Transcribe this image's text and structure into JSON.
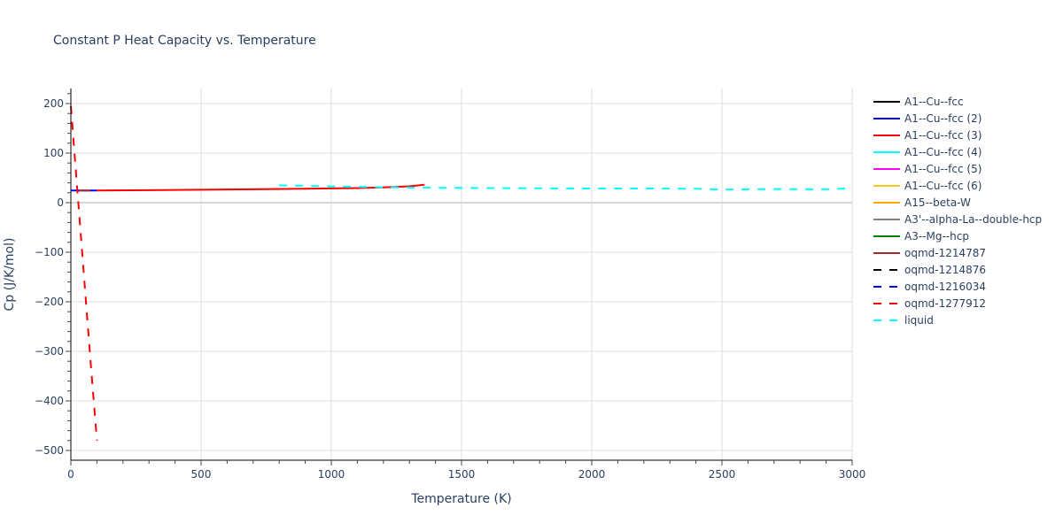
{
  "chart": {
    "title": "Constant P Heat Capacity vs. Temperature",
    "xlabel": "Temperature (K)",
    "ylabel": "Cp (J/K/mol)"
  },
  "chart_data": {
    "type": "line",
    "title": "Constant P Heat Capacity vs. Temperature",
    "xlabel": "Temperature (K)",
    "ylabel": "Cp (J/K/mol)",
    "xlim": [
      0,
      3000
    ],
    "ylim": [
      -520,
      230
    ],
    "xticks": [
      0,
      500,
      1000,
      1500,
      2000,
      2500,
      3000
    ],
    "yticks": [
      200,
      100,
      0,
      -100,
      -200,
      -300,
      -400,
      -500
    ],
    "grid": true,
    "legend_position": "right",
    "series": [
      {
        "name": "A1--Cu--fcc",
        "color": "#000000",
        "dash": "solid",
        "x": [],
        "y": []
      },
      {
        "name": "A1--Cu--fcc (2)",
        "color": "#0000ff",
        "dash": "solid",
        "x": [
          0,
          100
        ],
        "y": [
          24.5,
          24.5
        ]
      },
      {
        "name": "A1--Cu--fcc (3)",
        "color": "#ff0000",
        "dash": "solid",
        "x": [
          100,
          300,
          500,
          700,
          900,
          1100,
          1200,
          1300,
          1358
        ],
        "y": [
          24.5,
          25.2,
          26.0,
          27.0,
          28.0,
          29.5,
          30.8,
          33.0,
          36.0
        ]
      },
      {
        "name": "A1--Cu--fcc (4)",
        "color": "#00ffff",
        "dash": "solid",
        "x": [],
        "y": []
      },
      {
        "name": "A1--Cu--fcc (5)",
        "color": "#ff00ff",
        "dash": "solid",
        "x": [],
        "y": []
      },
      {
        "name": "A1--Cu--fcc (6)",
        "color": "#f5c518",
        "dash": "solid",
        "x": [],
        "y": []
      },
      {
        "name": "A15--beta-W",
        "color": "#ffa500",
        "dash": "solid",
        "x": [],
        "y": []
      },
      {
        "name": "A3'--alpha-La--double-hcp",
        "color": "#808080",
        "dash": "solid",
        "x": [],
        "y": []
      },
      {
        "name": "A3--Mg--hcp",
        "color": "#008000",
        "dash": "solid",
        "x": [],
        "y": []
      },
      {
        "name": "oqmd-1214787",
        "color": "#a52a2a",
        "dash": "solid",
        "x": [
          30,
          75
        ],
        "y": [
          24.5,
          24.5
        ]
      },
      {
        "name": "oqmd-1214876",
        "color": "#000000",
        "dash": "dash",
        "x": [],
        "y": []
      },
      {
        "name": "oqmd-1216034",
        "color": "#0000ff",
        "dash": "dash",
        "x": [],
        "y": []
      },
      {
        "name": "oqmd-1277912",
        "color": "#ff0000",
        "dash": "dash",
        "x": [
          0,
          25,
          50,
          75,
          100
        ],
        "y": [
          195,
          25,
          -145,
          -315,
          -480
        ]
      },
      {
        "name": "liquid",
        "color": "#00ffff",
        "dash": "dash",
        "x": [
          800,
          1000,
          1200,
          1400,
          1600,
          1800,
          2000,
          2200,
          2400,
          2500,
          2700,
          2900,
          3000
        ],
        "y": [
          35,
          33,
          31,
          30,
          29.5,
          29,
          28.5,
          28.5,
          28,
          26.5,
          27.5,
          27,
          29
        ]
      }
    ]
  },
  "legend": {
    "items": [
      {
        "label": "A1--Cu--fcc",
        "color": "#000000",
        "dash": "solid"
      },
      {
        "label": "A1--Cu--fcc (2)",
        "color": "#0000ff",
        "dash": "solid"
      },
      {
        "label": "A1--Cu--fcc (3)",
        "color": "#ff0000",
        "dash": "solid"
      },
      {
        "label": "A1--Cu--fcc (4)",
        "color": "#00ffff",
        "dash": "solid"
      },
      {
        "label": "A1--Cu--fcc (5)",
        "color": "#ff00ff",
        "dash": "solid"
      },
      {
        "label": "A1--Cu--fcc (6)",
        "color": "#f5c518",
        "dash": "solid"
      },
      {
        "label": "A15--beta-W",
        "color": "#ffa500",
        "dash": "solid"
      },
      {
        "label": "A3'--alpha-La--double-hcp",
        "color": "#808080",
        "dash": "solid"
      },
      {
        "label": "A3--Mg--hcp",
        "color": "#008000",
        "dash": "solid"
      },
      {
        "label": "oqmd-1214787",
        "color": "#a52a2a",
        "dash": "solid"
      },
      {
        "label": "oqmd-1214876",
        "color": "#000000",
        "dash": "dash"
      },
      {
        "label": "oqmd-1216034",
        "color": "#0000ff",
        "dash": "dash"
      },
      {
        "label": "oqmd-1277912",
        "color": "#ff0000",
        "dash": "dash"
      },
      {
        "label": "liquid",
        "color": "#00ffff",
        "dash": "dash"
      }
    ]
  }
}
